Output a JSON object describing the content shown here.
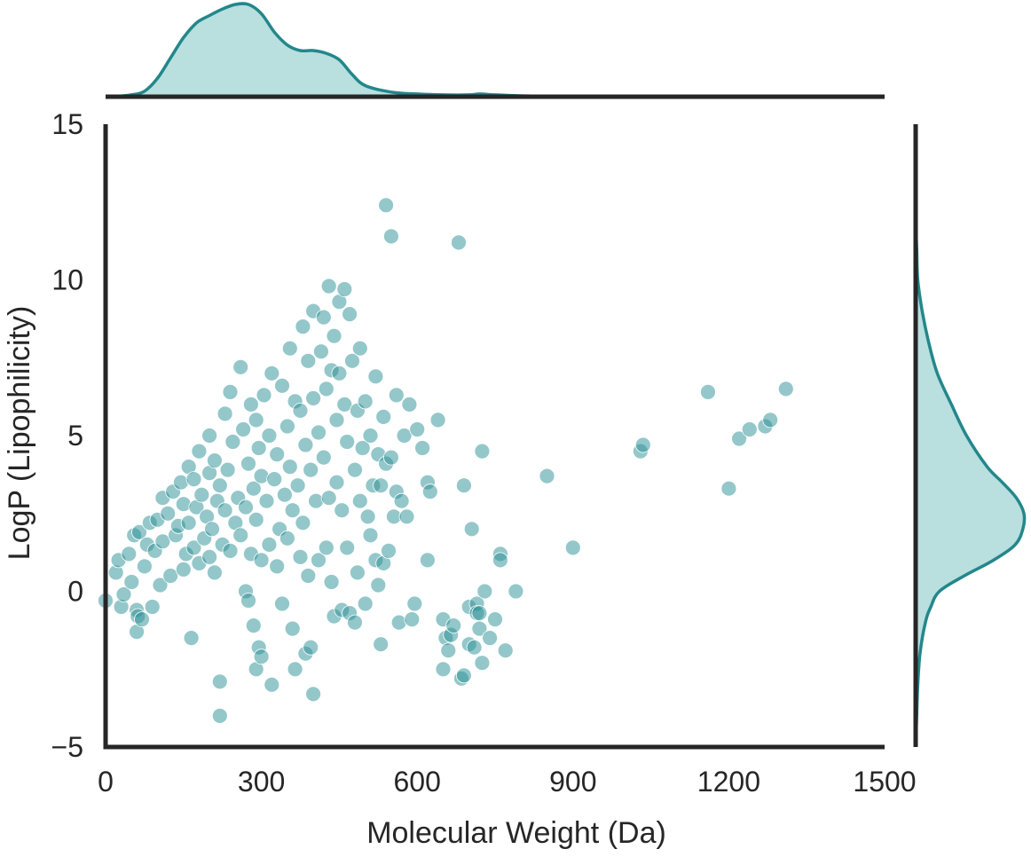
{
  "chart_data": {
    "type": "scatter",
    "subtype": "jointplot",
    "xlabel": "Molecular Weight (Da)",
    "ylabel": "LogP (Lipophilicity)",
    "xlim": [
      0,
      1500
    ],
    "ylim": [
      -5,
      15
    ],
    "xticks": [
      "0",
      "300",
      "600",
      "900",
      "1200",
      "1500"
    ],
    "yticks": [
      "−5",
      "0",
      "5",
      "10",
      "15"
    ],
    "grid": false,
    "legend": "none",
    "colors": {
      "points": "#2a9095",
      "kde_line": "#23878b",
      "kde_fill": "#b9dfdf",
      "axis": "#262626"
    },
    "marginal_x_kde": {
      "x": [
        0,
        25,
        50,
        75,
        100,
        125,
        150,
        175,
        200,
        225,
        250,
        275,
        300,
        325,
        350,
        375,
        400,
        425,
        450,
        475,
        500,
        550,
        600,
        650,
        700,
        720,
        750,
        800,
        900,
        1000,
        1100,
        1200,
        1300,
        1400,
        1500
      ],
      "density": [
        0.0,
        0.005,
        0.02,
        0.06,
        0.2,
        0.42,
        0.64,
        0.8,
        0.88,
        0.95,
        1.0,
        1.0,
        0.9,
        0.7,
        0.56,
        0.5,
        0.5,
        0.47,
        0.4,
        0.24,
        0.12,
        0.05,
        0.03,
        0.02,
        0.02,
        0.03,
        0.02,
        0.01,
        0.0,
        0.0,
        0.0,
        0.0,
        0.0,
        0.0,
        0.0
      ]
    },
    "marginal_y_kde": {
      "y": [
        -5,
        -4,
        -3,
        -2,
        -1,
        -0.5,
        0,
        0.5,
        1,
        1.5,
        2,
        2.5,
        3,
        3.5,
        4,
        5,
        6,
        7,
        8,
        9,
        10,
        11,
        12,
        13,
        14,
        15
      ],
      "density": [
        0.0,
        0.01,
        0.02,
        0.04,
        0.09,
        0.14,
        0.22,
        0.45,
        0.72,
        0.92,
        0.99,
        1.0,
        0.93,
        0.8,
        0.66,
        0.47,
        0.33,
        0.2,
        0.12,
        0.06,
        0.02,
        0.01,
        0.0,
        0.0,
        0.0,
        0.0
      ]
    },
    "points": [
      [
        0,
        -0.3
      ],
      [
        20,
        0.6
      ],
      [
        25,
        1.0
      ],
      [
        30,
        -0.5
      ],
      [
        35,
        -0.1
      ],
      [
        45,
        1.2
      ],
      [
        50,
        0.3
      ],
      [
        55,
        1.8
      ],
      [
        60,
        -0.6
      ],
      [
        60,
        -1.3
      ],
      [
        62,
        -0.8
      ],
      [
        65,
        1.9
      ],
      [
        70,
        -0.9
      ],
      [
        75,
        0.8
      ],
      [
        80,
        1.5
      ],
      [
        85,
        2.2
      ],
      [
        90,
        -0.5
      ],
      [
        95,
        1.3
      ],
      [
        100,
        2.3
      ],
      [
        105,
        0.2
      ],
      [
        110,
        3.0
      ],
      [
        110,
        1.6
      ],
      [
        120,
        2.5
      ],
      [
        125,
        0.5
      ],
      [
        130,
        3.2
      ],
      [
        135,
        1.8
      ],
      [
        140,
        2.1
      ],
      [
        145,
        3.5
      ],
      [
        150,
        0.7
      ],
      [
        150,
        2.8
      ],
      [
        155,
        1.2
      ],
      [
        160,
        4.0
      ],
      [
        160,
        2.2
      ],
      [
        165,
        -1.5
      ],
      [
        170,
        3.6
      ],
      [
        170,
        1.4
      ],
      [
        175,
        2.7
      ],
      [
        180,
        4.5
      ],
      [
        180,
        0.9
      ],
      [
        185,
        3.1
      ],
      [
        190,
        1.7
      ],
      [
        195,
        2.4
      ],
      [
        200,
        5.0
      ],
      [
        200,
        3.8
      ],
      [
        200,
        1.1
      ],
      [
        205,
        2.0
      ],
      [
        210,
        4.2
      ],
      [
        210,
        0.6
      ],
      [
        215,
        2.9
      ],
      [
        220,
        -2.9
      ],
      [
        220,
        -4.0
      ],
      [
        220,
        3.4
      ],
      [
        225,
        1.5
      ],
      [
        230,
        5.7
      ],
      [
        230,
        2.6
      ],
      [
        235,
        3.9
      ],
      [
        240,
        6.4
      ],
      [
        240,
        1.3
      ],
      [
        245,
        4.8
      ],
      [
        250,
        2.2
      ],
      [
        255,
        3.0
      ],
      [
        260,
        7.2
      ],
      [
        260,
        1.8
      ],
      [
        265,
        5.2
      ],
      [
        270,
        0.0
      ],
      [
        270,
        2.7
      ],
      [
        275,
        4.1
      ],
      [
        275,
        -0.3
      ],
      [
        280,
        6.0
      ],
      [
        280,
        1.2
      ],
      [
        285,
        3.3
      ],
      [
        285,
        -1.1
      ],
      [
        290,
        5.5
      ],
      [
        290,
        2.3
      ],
      [
        290,
        -2.5
      ],
      [
        295,
        4.6
      ],
      [
        295,
        -1.8
      ],
      [
        300,
        3.7
      ],
      [
        300,
        1.0
      ],
      [
        300,
        -2.1
      ],
      [
        305,
        6.3
      ],
      [
        310,
        2.9
      ],
      [
        315,
        5.0
      ],
      [
        315,
        1.5
      ],
      [
        320,
        7.0
      ],
      [
        320,
        -3.0
      ],
      [
        325,
        3.6
      ],
      [
        330,
        4.4
      ],
      [
        330,
        0.8
      ],
      [
        335,
        2.0
      ],
      [
        340,
        6.6
      ],
      [
        340,
        -0.4
      ],
      [
        345,
        3.1
      ],
      [
        350,
        5.3
      ],
      [
        350,
        1.7
      ],
      [
        355,
        7.8
      ],
      [
        355,
        4.0
      ],
      [
        360,
        2.6
      ],
      [
        360,
        -1.2
      ],
      [
        365,
        6.1
      ],
      [
        365,
        -2.5
      ],
      [
        370,
        3.4
      ],
      [
        375,
        5.8
      ],
      [
        375,
        1.1
      ],
      [
        380,
        8.5
      ],
      [
        380,
        2.2
      ],
      [
        385,
        4.7
      ],
      [
        385,
        -2.0
      ],
      [
        390,
        7.4
      ],
      [
        390,
        0.5
      ],
      [
        395,
        3.9
      ],
      [
        395,
        -1.8
      ],
      [
        400,
        9.0
      ],
      [
        400,
        6.2
      ],
      [
        400,
        -3.3
      ],
      [
        405,
        2.9
      ],
      [
        410,
        5.1
      ],
      [
        410,
        1.0
      ],
      [
        415,
        7.7
      ],
      [
        420,
        4.3
      ],
      [
        420,
        8.8
      ],
      [
        425,
        1.4
      ],
      [
        425,
        6.5
      ],
      [
        430,
        9.8
      ],
      [
        430,
        3.0
      ],
      [
        435,
        7.1
      ],
      [
        435,
        0.3
      ],
      [
        440,
        8.2
      ],
      [
        440,
        -0.8
      ],
      [
        445,
        5.5
      ],
      [
        445,
        3.5
      ],
      [
        450,
        9.3
      ],
      [
        450,
        7.0
      ],
      [
        455,
        2.6
      ],
      [
        455,
        -0.6
      ],
      [
        460,
        9.7
      ],
      [
        460,
        6.0
      ],
      [
        465,
        4.8
      ],
      [
        465,
        1.4
      ],
      [
        470,
        8.9
      ],
      [
        470,
        -0.7
      ],
      [
        475,
        7.4
      ],
      [
        480,
        3.9
      ],
      [
        480,
        -1.0
      ],
      [
        485,
        5.8
      ],
      [
        485,
        0.6
      ],
      [
        490,
        7.8
      ],
      [
        490,
        2.9
      ],
      [
        495,
        4.6
      ],
      [
        500,
        6.1
      ],
      [
        500,
        -0.4
      ],
      [
        505,
        2.4
      ],
      [
        510,
        5.0
      ],
      [
        510,
        1.8
      ],
      [
        515,
        3.4
      ],
      [
        520,
        6.9
      ],
      [
        520,
        1.0
      ],
      [
        525,
        4.4
      ],
      [
        525,
        0.2
      ],
      [
        530,
        3.4
      ],
      [
        530,
        -1.7
      ],
      [
        535,
        5.6
      ],
      [
        535,
        0.9
      ],
      [
        540,
        12.4
      ],
      [
        540,
        4.1
      ],
      [
        545,
        1.3
      ],
      [
        550,
        11.4
      ],
      [
        550,
        4.3
      ],
      [
        555,
        2.4
      ],
      [
        560,
        6.3
      ],
      [
        560,
        3.2
      ],
      [
        565,
        -1.0
      ],
      [
        570,
        2.9
      ],
      [
        575,
        5.0
      ],
      [
        580,
        2.4
      ],
      [
        585,
        6.0
      ],
      [
        590,
        -0.9
      ],
      [
        595,
        -0.4
      ],
      [
        600,
        5.2
      ],
      [
        610,
        4.6
      ],
      [
        620,
        1.0
      ],
      [
        620,
        3.5
      ],
      [
        625,
        3.2
      ],
      [
        640,
        5.5
      ],
      [
        650,
        -0.9
      ],
      [
        650,
        -2.5
      ],
      [
        655,
        -1.5
      ],
      [
        660,
        -1.9
      ],
      [
        665,
        -1.4
      ],
      [
        670,
        -1.1
      ],
      [
        680,
        11.2
      ],
      [
        685,
        -2.8
      ],
      [
        690,
        -2.7
      ],
      [
        690,
        3.4
      ],
      [
        700,
        -1.7
      ],
      [
        700,
        -0.5
      ],
      [
        705,
        2.0
      ],
      [
        710,
        -1.8
      ],
      [
        715,
        -0.4
      ],
      [
        715,
        -0.7
      ],
      [
        720,
        -0.7
      ],
      [
        720,
        -1.2
      ],
      [
        725,
        4.5
      ],
      [
        725,
        -2.3
      ],
      [
        730,
        0.0
      ],
      [
        740,
        -1.5
      ],
      [
        750,
        -0.9
      ],
      [
        760,
        1.2
      ],
      [
        760,
        1.0
      ],
      [
        770,
        -1.9
      ],
      [
        790,
        0.0
      ],
      [
        850,
        3.7
      ],
      [
        900,
        1.4
      ],
      [
        1030,
        4.5
      ],
      [
        1035,
        4.7
      ],
      [
        1160,
        6.4
      ],
      [
        1200,
        3.3
      ],
      [
        1220,
        4.9
      ],
      [
        1240,
        5.2
      ],
      [
        1270,
        5.3
      ],
      [
        1280,
        5.5
      ],
      [
        1310,
        6.5
      ]
    ]
  }
}
